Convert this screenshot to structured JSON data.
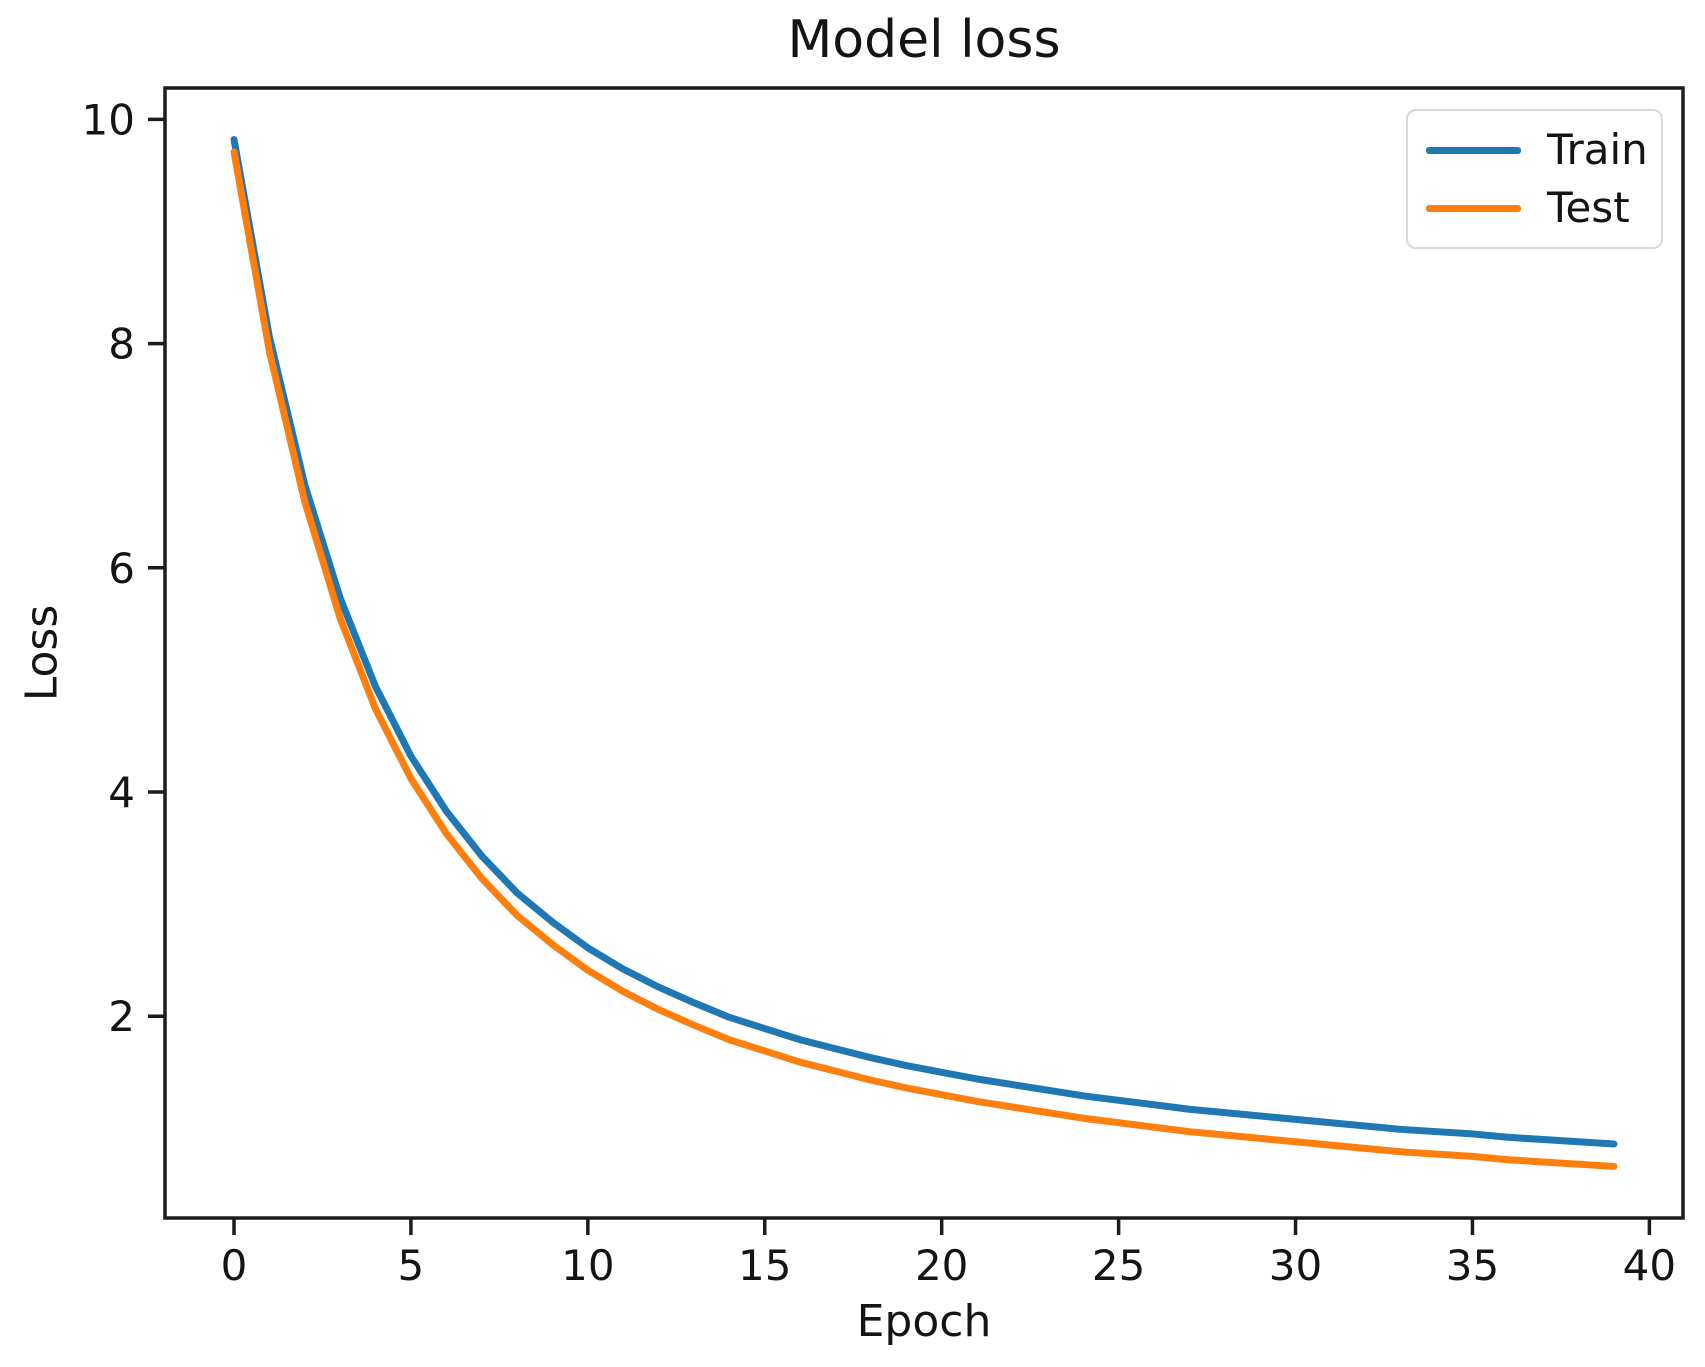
{
  "figure": {
    "title": "Model loss",
    "xlabel": "Epoch",
    "ylabel": "Loss"
  },
  "legend": {
    "entries": [
      {
        "label": "Train",
        "color": "#1f77b4"
      },
      {
        "label": "Test",
        "color": "#ff7f0e"
      }
    ]
  },
  "colors": {
    "axis": "#1c1c1c",
    "tick_text": "#141414",
    "train_line": "#1f77b4",
    "test_line": "#ff7f0e"
  },
  "chart_data": {
    "type": "line",
    "title": "Model loss",
    "xlabel": "Epoch",
    "ylabel": "Loss",
    "grid": false,
    "legend_position": "upper right",
    "xlim": [
      -1.95,
      40.95
    ],
    "ylim": [
      0.2,
      10.28
    ],
    "xticks": [
      0,
      5,
      10,
      15,
      20,
      25,
      30,
      35,
      40
    ],
    "yticks": [
      2,
      4,
      6,
      8,
      10
    ],
    "x": [
      0,
      1,
      2,
      3,
      4,
      5,
      6,
      7,
      8,
      9,
      10,
      11,
      12,
      13,
      14,
      15,
      16,
      17,
      18,
      19,
      20,
      21,
      22,
      23,
      24,
      25,
      26,
      27,
      28,
      29,
      30,
      31,
      32,
      33,
      34,
      35,
      36,
      37,
      38,
      39
    ],
    "series": [
      {
        "name": "Train",
        "color": "#1f77b4",
        "values": [
          9.82,
          8.06,
          6.74,
          5.73,
          4.94,
          4.32,
          3.83,
          3.43,
          3.1,
          2.84,
          2.61,
          2.42,
          2.26,
          2.12,
          1.99,
          1.89,
          1.79,
          1.71,
          1.63,
          1.56,
          1.5,
          1.44,
          1.39,
          1.34,
          1.29,
          1.25,
          1.21,
          1.17,
          1.14,
          1.11,
          1.08,
          1.05,
          1.02,
          0.99,
          0.97,
          0.95,
          0.92,
          0.9,
          0.88,
          0.86
        ]
      },
      {
        "name": "Test",
        "color": "#ff7f0e",
        "values": [
          9.71,
          7.93,
          6.59,
          5.55,
          4.74,
          4.12,
          3.63,
          3.23,
          2.9,
          2.64,
          2.41,
          2.22,
          2.06,
          1.92,
          1.79,
          1.69,
          1.59,
          1.51,
          1.43,
          1.36,
          1.3,
          1.24,
          1.19,
          1.14,
          1.09,
          1.05,
          1.01,
          0.97,
          0.94,
          0.91,
          0.88,
          0.85,
          0.82,
          0.79,
          0.77,
          0.75,
          0.72,
          0.7,
          0.68,
          0.66
        ]
      }
    ]
  }
}
